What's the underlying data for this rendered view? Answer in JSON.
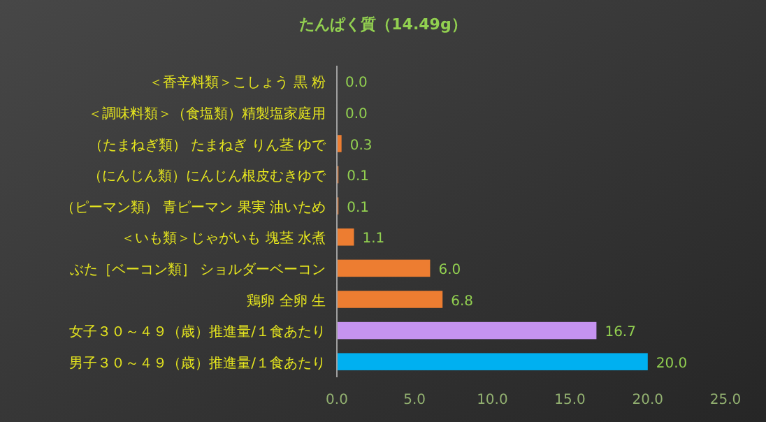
{
  "chart_data": {
    "type": "bar",
    "orientation": "horizontal",
    "title": "たんぱく質（14.49g）",
    "categories": [
      "＜香辛料類＞こしょう 黒 粉",
      "＜調味料類＞（食塩類）精製塩家庭用",
      "（たまねぎ類） たまねぎ りん茎 ゆで",
      "（にんじん類）にんじん根皮むきゆで",
      "（ピーマン類） 青ピーマン 果実 油いため",
      "＜いも類＞じゃがいも 塊茎 水煮",
      "ぶた［ベーコン類］ ショルダーベーコン",
      "鶏卵 全卵 生",
      "女子３０～４９（歳）推進量/１食あたり",
      "男子３０～４９（歳）推進量/１食あたり"
    ],
    "values": [
      0.0,
      0.0,
      0.3,
      0.1,
      0.1,
      1.1,
      6.0,
      6.8,
      16.7,
      20.0
    ],
    "value_labels": [
      "0.0",
      "0.0",
      "0.3",
      "0.1",
      "0.1",
      "1.1",
      "6.0",
      "6.8",
      "16.7",
      "20.0"
    ],
    "colors": [
      "#ed7d31",
      "#ed7d31",
      "#ed7d31",
      "#ed7d31",
      "#ed7d31",
      "#ed7d31",
      "#ed7d31",
      "#ed7d31",
      "#c593f0",
      "#00b0f0"
    ],
    "xlim": [
      0,
      25
    ],
    "xticks": [
      {
        "value": 0,
        "label": "0.0"
      },
      {
        "value": 5,
        "label": "5.0"
      },
      {
        "value": 10,
        "label": "10.0"
      },
      {
        "value": 15,
        "label": "15.0"
      },
      {
        "value": 20,
        "label": "20.0"
      },
      {
        "value": 25,
        "label": "25.0"
      }
    ]
  }
}
